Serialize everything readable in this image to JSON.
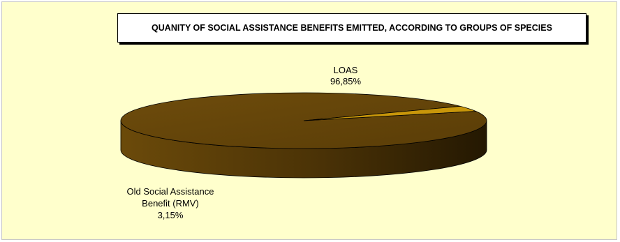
{
  "chart_data": {
    "type": "pie",
    "title": "QUANITY OF SOCIAL ASSISTANCE BENEFITS EMITTED, ACCORDING TO GROUPS OF SPECIES",
    "slices": [
      {
        "label_lines": [
          "LOAS"
        ],
        "value": 96.85,
        "value_label": "96,85%",
        "color": "#6b4a0a"
      },
      {
        "label_lines": [
          "Old Social Assistance",
          "Benefit (RMV)"
        ],
        "value": 3.15,
        "value_label": "3,15%",
        "color": "#c8960a"
      }
    ],
    "legend": "none"
  }
}
